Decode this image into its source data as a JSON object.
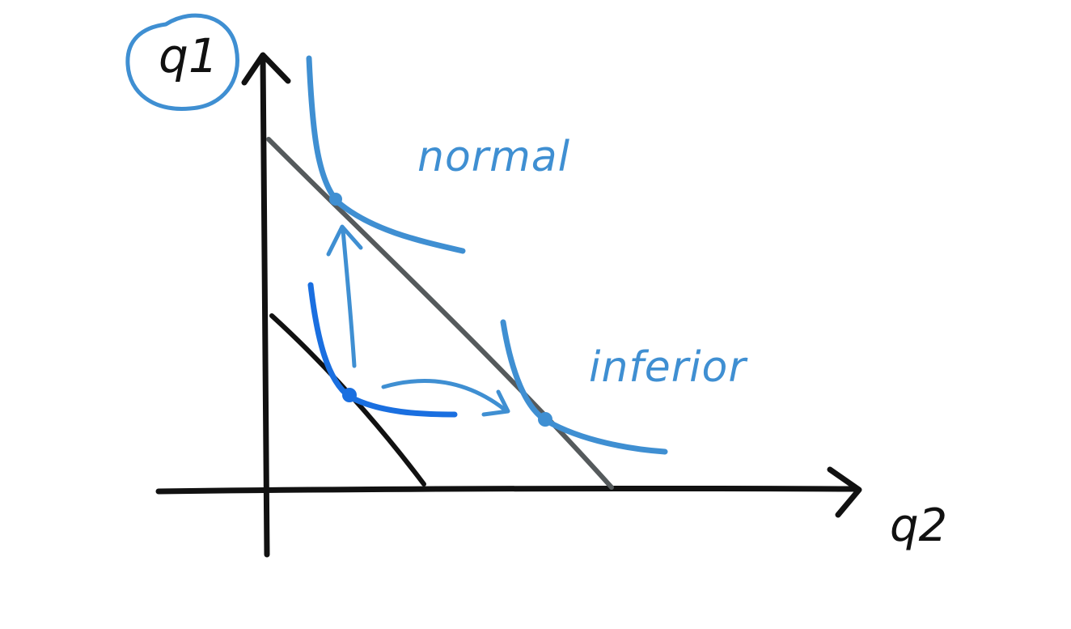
{
  "axes": {
    "y_label": "q1",
    "x_label": "q2"
  },
  "labels": {
    "normal": "normal",
    "inferior": "inferior"
  },
  "colors": {
    "ink": "#111111",
    "budget_new": "#555a5c",
    "curve_light": "#3f8fd2",
    "curve_initial": "#1a6fe0",
    "highlight_circle": "#3f8fd2"
  }
}
